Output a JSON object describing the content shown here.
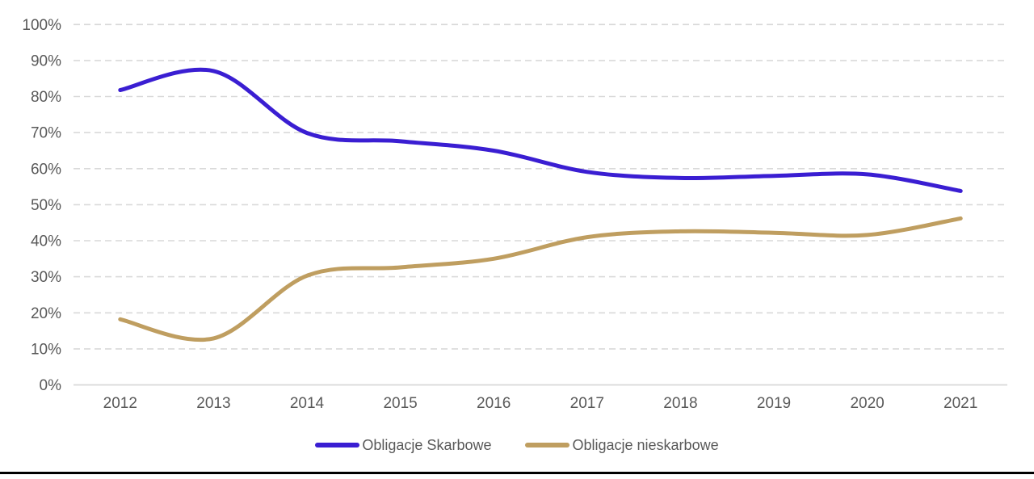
{
  "chart_data": {
    "type": "line",
    "style": "smooth",
    "categories": [
      "2012",
      "2013",
      "2014",
      "2015",
      "2016",
      "2017",
      "2018",
      "2019",
      "2020",
      "2021"
    ],
    "series": [
      {
        "name": "Obligacje Skarbowe",
        "color": "#3A1ED2",
        "values": [
          81.8,
          87.1,
          69.9,
          67.6,
          65.0,
          59.1,
          57.4,
          58.0,
          58.4,
          53.8
        ]
      },
      {
        "name": "Obligacje nieskarbowe",
        "color": "#BF9E60",
        "values": [
          18.2,
          12.9,
          30.3,
          32.6,
          35.0,
          41.0,
          42.6,
          42.2,
          41.6,
          46.2
        ]
      }
    ],
    "title": "",
    "xlabel": "",
    "ylabel": "",
    "ylim": [
      0,
      100
    ],
    "y_tick_labels": [
      "0%",
      "10%",
      "20%",
      "30%",
      "40%",
      "50%",
      "60%",
      "70%",
      "80%",
      "90%",
      "100%"
    ],
    "grid": "horizontal-dashed",
    "legend_position": "bottom"
  },
  "colors": {
    "axis_text": "#595959",
    "gridline": "#D9D9D9",
    "axis_line": "#D9D9D9",
    "background": "#FFFFFF",
    "bottom_bar": "#000000"
  }
}
